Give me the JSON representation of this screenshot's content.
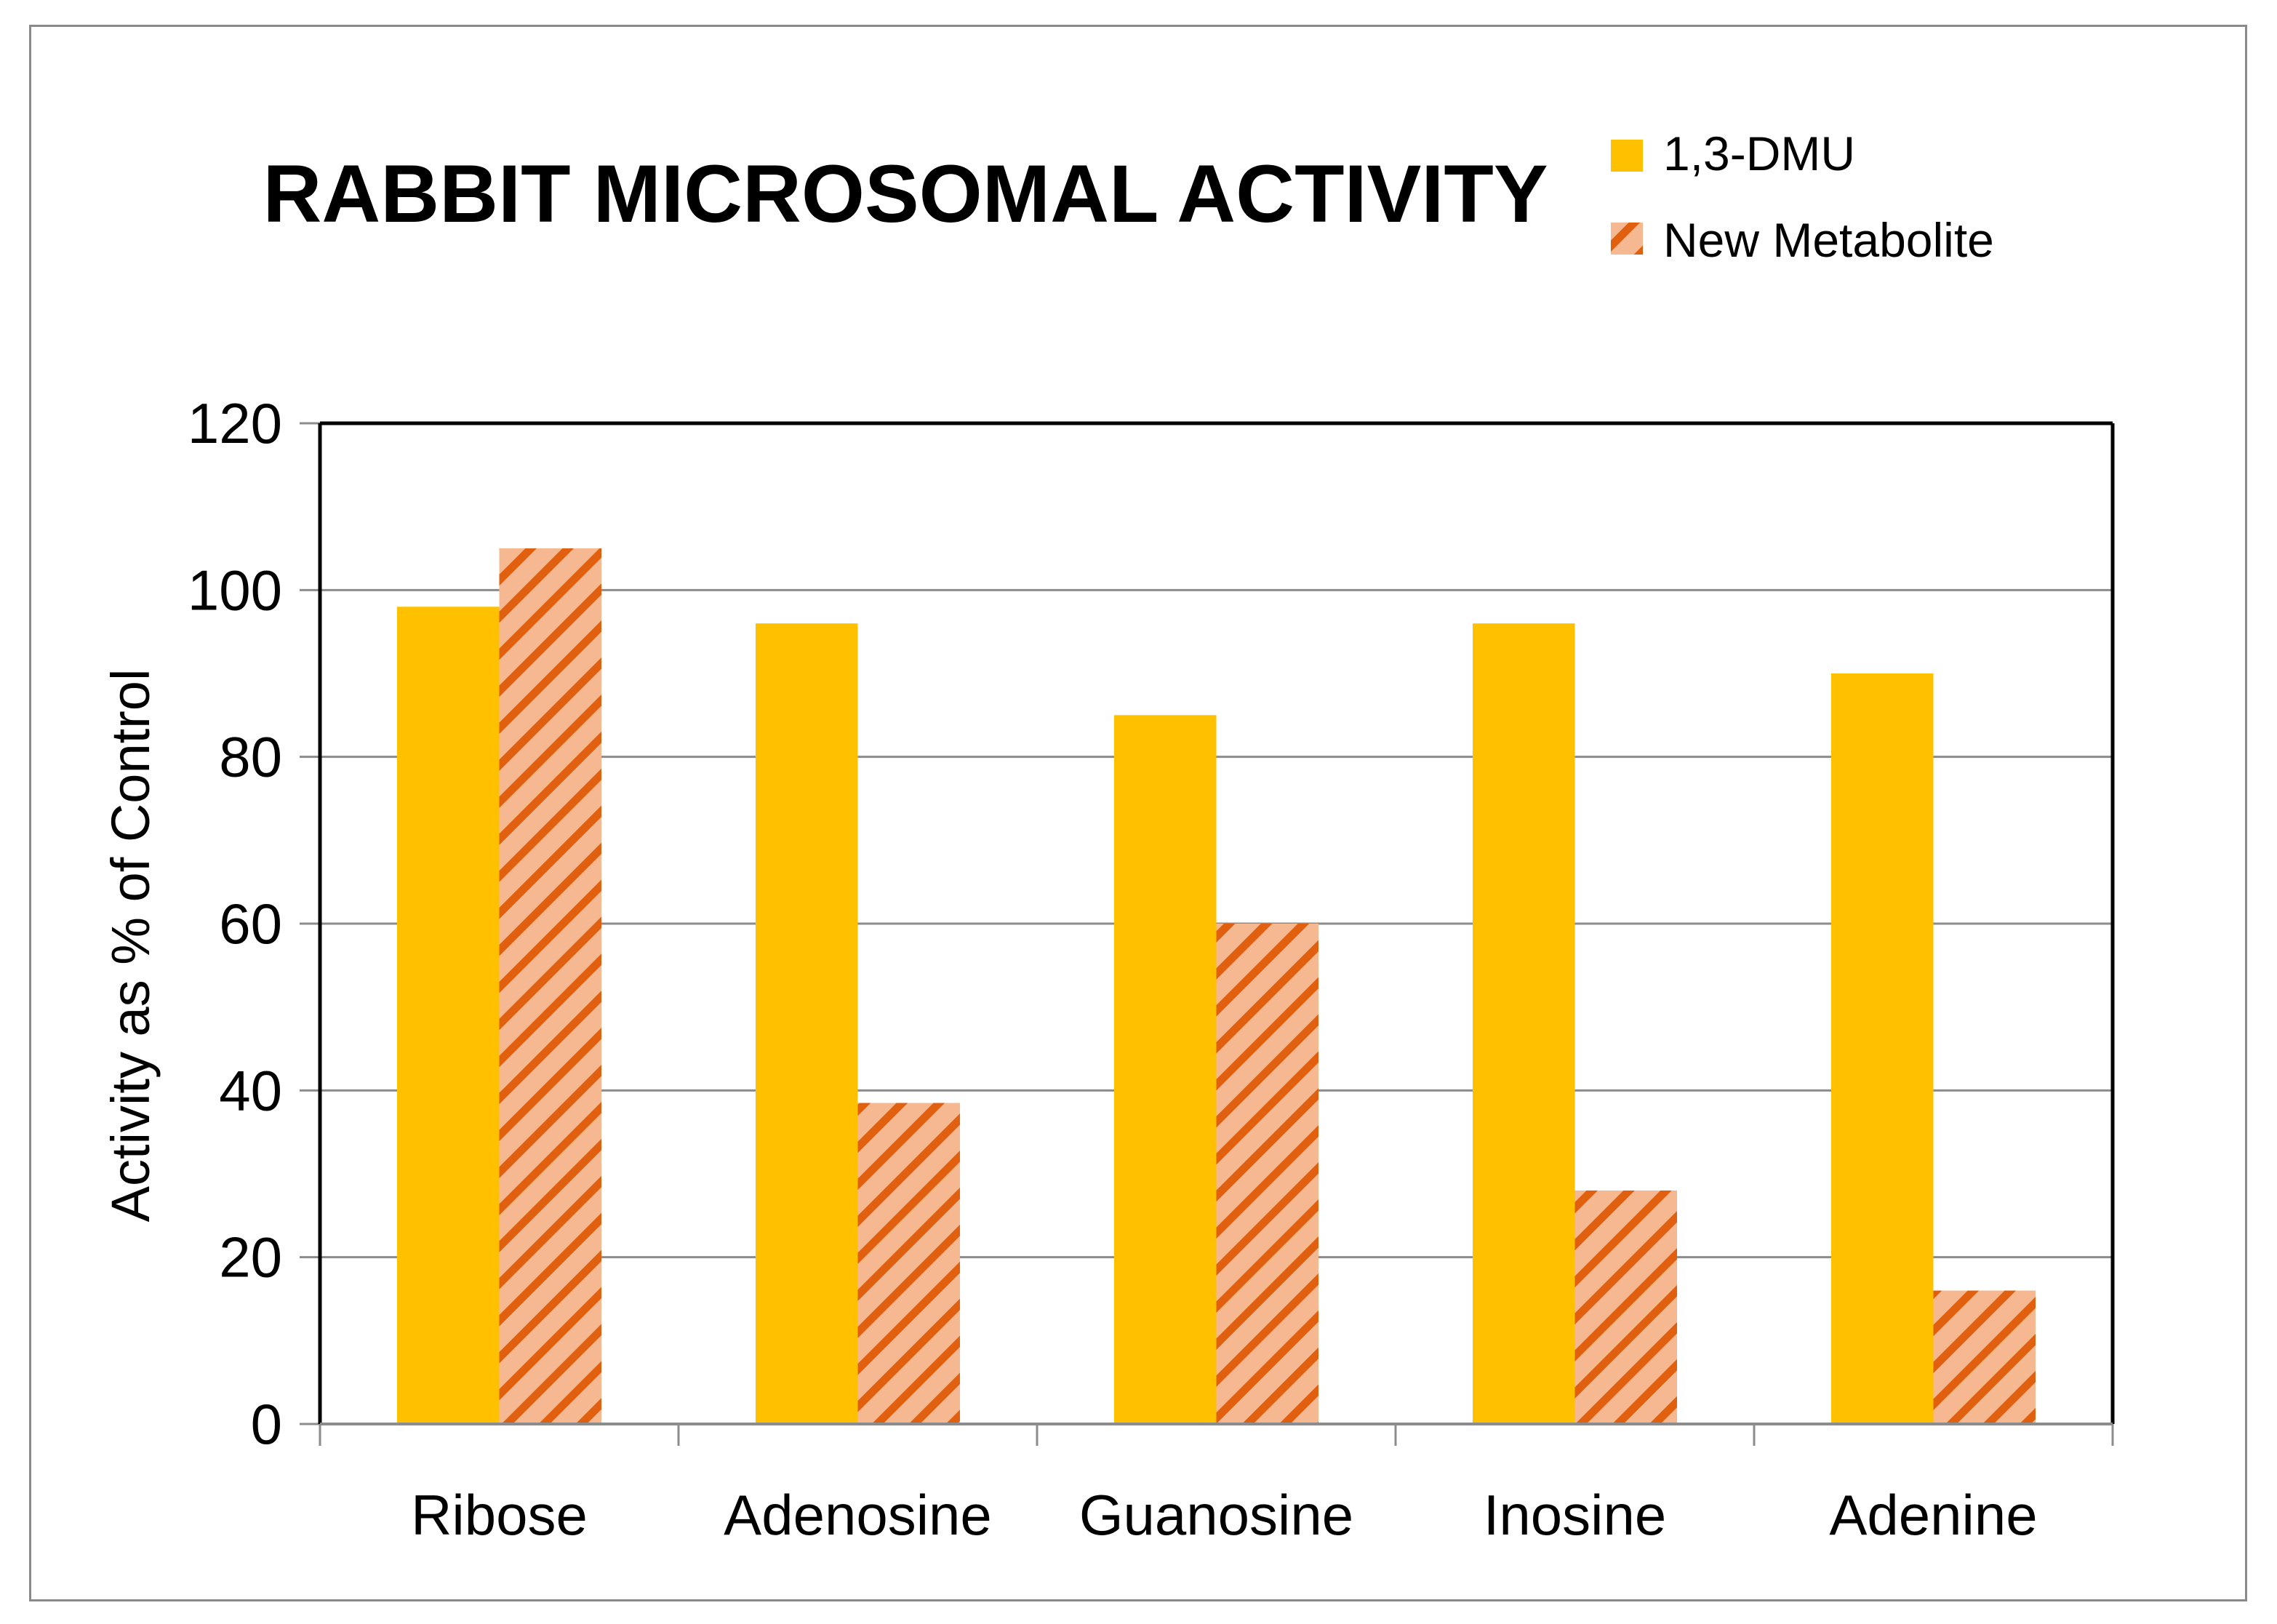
{
  "chart_data": {
    "type": "bar",
    "title": "RABBIT MICROSOMAL ACTIVITY",
    "xlabel": "",
    "ylabel": "Activity as % of Control",
    "categories": [
      "Ribose",
      "Adenosine",
      "Guanosine",
      "Inosine",
      "Adenine"
    ],
    "series": [
      {
        "name": "1,3-DMU",
        "values": [
          98,
          96,
          85,
          96,
          90
        ],
        "color": "#FFC000",
        "pattern": "solid"
      },
      {
        "name": "New Metabolite",
        "values": [
          105,
          38.5,
          60,
          28,
          16
        ],
        "color": "#F5B891",
        "stripe_color": "#E06010",
        "pattern": "diagonal-stripes"
      }
    ],
    "ylim": [
      0,
      120
    ],
    "yticks": [
      0,
      20,
      40,
      60,
      80,
      100,
      120
    ],
    "grid": true,
    "legend": "top-right"
  }
}
